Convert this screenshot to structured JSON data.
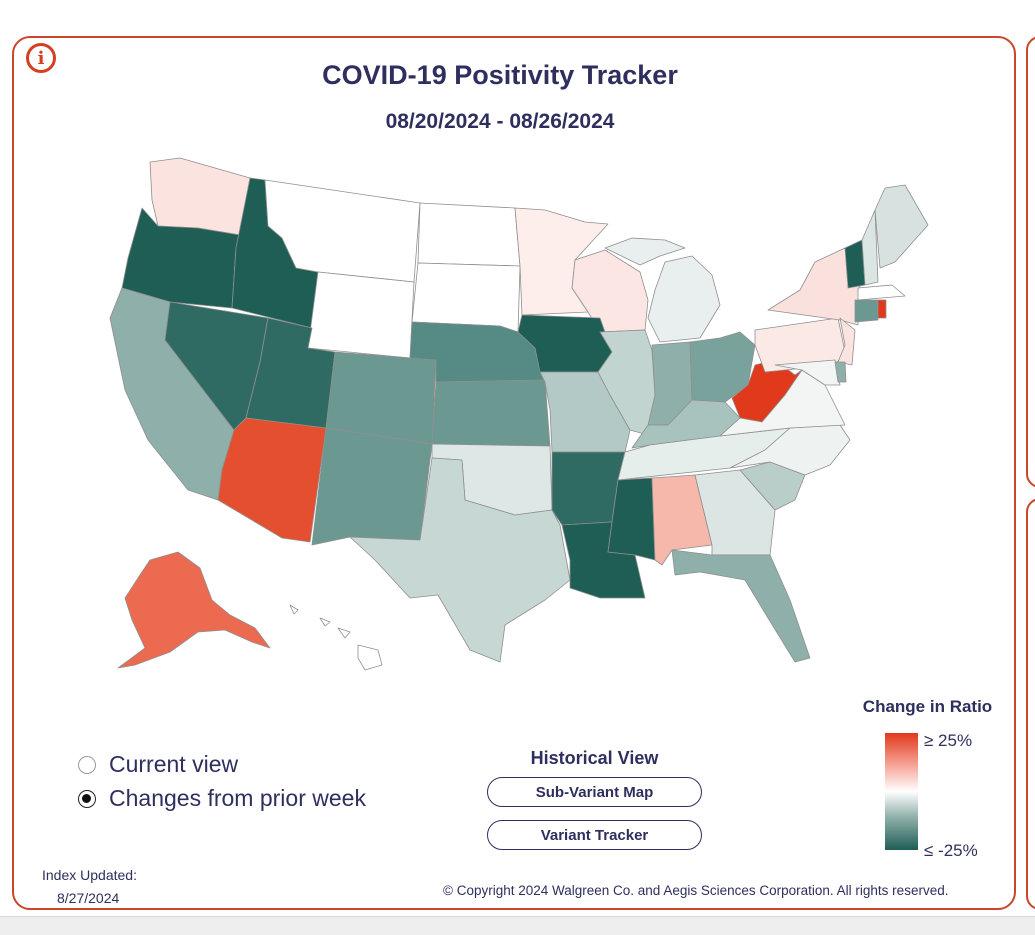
{
  "header": {
    "title": "COVID-19 Positivity Tracker",
    "date_range": "08/20/2024 - 08/26/2024",
    "info_icon": "info-icon"
  },
  "map": {
    "metric": "Change in Ratio",
    "states": [
      {
        "code": "WA",
        "color": "#fbe3df"
      },
      {
        "code": "OR",
        "color": "#1f5e55"
      },
      {
        "code": "ID",
        "color": "#1f5e55"
      },
      {
        "code": "MT",
        "color": "#ffffff"
      },
      {
        "code": "WY",
        "color": "#ffffff"
      },
      {
        "code": "ND",
        "color": "#ffffff"
      },
      {
        "code": "SD",
        "color": "#ffffff"
      },
      {
        "code": "MN",
        "color": "#fdeeec"
      },
      {
        "code": "WI",
        "color": "#fbe6e3"
      },
      {
        "code": "MI",
        "color": "#e9efee"
      },
      {
        "code": "CA",
        "color": "#8fb0aa"
      },
      {
        "code": "NV",
        "color": "#2f6b62"
      },
      {
        "code": "UT",
        "color": "#2f6b62"
      },
      {
        "code": "CO",
        "color": "#6c9892"
      },
      {
        "code": "NE",
        "color": "#558b84"
      },
      {
        "code": "IA",
        "color": "#1f5e55"
      },
      {
        "code": "IL",
        "color": "#c2d4d0"
      },
      {
        "code": "IN",
        "color": "#8fb0aa"
      },
      {
        "code": "OH",
        "color": "#7aa29c"
      },
      {
        "code": "PA",
        "color": "#fbe9e6"
      },
      {
        "code": "NY",
        "color": "#fbe1dd"
      },
      {
        "code": "AZ",
        "color": "#e4502f"
      },
      {
        "code": "NM",
        "color": "#6c9892"
      },
      {
        "code": "KS",
        "color": "#6c9892"
      },
      {
        "code": "MO",
        "color": "#b3c9c5"
      },
      {
        "code": "KY",
        "color": "#a8c2bd"
      },
      {
        "code": "WV",
        "color": "#e0391c"
      },
      {
        "code": "VA",
        "color": "#f2f5f4"
      },
      {
        "code": "OK",
        "color": "#dde7e5"
      },
      {
        "code": "TX",
        "color": "#c7d7d4"
      },
      {
        "code": "AR",
        "color": "#2f6b62"
      },
      {
        "code": "LA",
        "color": "#1f5e55"
      },
      {
        "code": "MS",
        "color": "#1f5e55"
      },
      {
        "code": "AL",
        "color": "#f6b8ab"
      },
      {
        "code": "TN",
        "color": "#e6eeec"
      },
      {
        "code": "GA",
        "color": "#dbe5e3"
      },
      {
        "code": "FL",
        "color": "#8fb0aa"
      },
      {
        "code": "SC",
        "color": "#b9cdc9"
      },
      {
        "code": "NC",
        "color": "#eef3f2"
      },
      {
        "code": "ME",
        "color": "#d7e2e0"
      },
      {
        "code": "NH",
        "color": "#dbe5e3"
      },
      {
        "code": "VT",
        "color": "#1f5e55"
      },
      {
        "code": "MA",
        "color": "#ffffff"
      },
      {
        "code": "CT",
        "color": "#6c9892"
      },
      {
        "code": "RI",
        "color": "#e0391c"
      },
      {
        "code": "NJ",
        "color": "#fbe3df"
      },
      {
        "code": "DE",
        "color": "#8fb0aa"
      },
      {
        "code": "MD",
        "color": "#f2f5f4"
      },
      {
        "code": "AK",
        "color": "#ec6a4f"
      },
      {
        "code": "HI",
        "color": "#ffffff"
      }
    ]
  },
  "view_options": {
    "selected": "changes",
    "current_label": "Current view",
    "changes_label": "Changes from prior week"
  },
  "historical": {
    "heading": "Historical View",
    "sub_variant_label": "Sub-Variant Map",
    "variant_tracker_label": "Variant Tracker"
  },
  "legend": {
    "title": "Change in Ratio",
    "high_label": "≥ 25%",
    "low_label": "≤ -25%",
    "high_color": "#e0391c",
    "mid_color": "#ffffff",
    "low_color": "#1f5e55"
  },
  "footer": {
    "index_label": "Index Updated:",
    "index_date": "8/27/2024",
    "copyright": "© Copyright 2024 Walgreen Co. and Aegis Sciences Corporation. All rights reserved."
  }
}
